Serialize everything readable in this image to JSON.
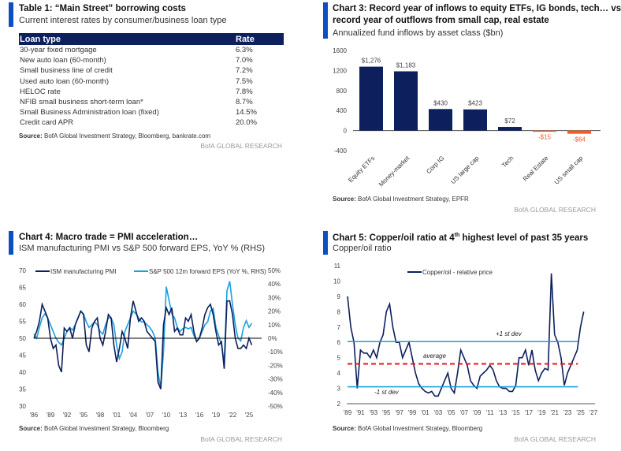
{
  "table1": {
    "title": "Table 1: “Main Street” borrowing costs",
    "subtitle": "Current interest rates by consumer/business loan type",
    "headers": [
      "Loan type",
      "Rate"
    ],
    "rows": [
      [
        "30-year fixed mortgage",
        "6.3%"
      ],
      [
        "New auto loan (60-month)",
        "7.0%"
      ],
      [
        "Small business line of credit",
        "7.2%"
      ],
      [
        "Used auto loan (60-month)",
        "7.5%"
      ],
      [
        "HELOC rate",
        "7.8%"
      ],
      [
        "NFIB small business short-term loan*",
        "8.7%"
      ],
      [
        "Small Business Administration loan (fixed)",
        "14.5%"
      ],
      [
        "Credit card APR",
        "20.0%"
      ]
    ],
    "source_label": "Source:",
    "source": " BofA Global Investment Strategy, Bloomberg, bankrate.com",
    "brand": "BofA GLOBAL RESEARCH"
  },
  "chart_data": [
    {
      "type": "bar",
      "title": "Chart 3: Record year of inflows to equity ETFs, IG bonds, tech… vs record year of outflows from small cap, real estate",
      "title_line1": "Chart 3: Record year of inflows to equity ETFs, IG bonds, tech… vs",
      "title_line2": "record year of outflows from small cap, real estate",
      "subtitle": "Annualized fund inflows by asset class ($bn)",
      "categories": [
        "Equity ETFs",
        "Money-market",
        "Corp IG",
        "US large cap",
        "Tech",
        "Real Estate",
        "US small cap"
      ],
      "values": [
        1276,
        1183,
        430,
        423,
        72,
        -15,
        -64
      ],
      "data_labels": [
        "$1,276",
        "$1,183",
        "$430",
        "$423",
        "$72",
        "-$15",
        "-$64"
      ],
      "ylim": [
        -400,
        1600
      ],
      "yticks": [
        "1600",
        "1200",
        "800",
        "400",
        "0",
        "-400"
      ],
      "colors": {
        "positive": "#0d1f5c",
        "negative": "#f25a2a",
        "neg_label": "#f25a2a"
      },
      "source_label": "Source:",
      "source": " BofA Global Investment Strategy, EPFR",
      "brand": "BofA GLOBAL RESEARCH"
    },
    {
      "type": "line",
      "title": "Chart 4: Macro trade = PMI acceleration…",
      "subtitle": "ISM manufacturing PMI vs S&P 500 forward EPS, YoY % (RHS)",
      "xticks": [
        "'86",
        "'89",
        "'92",
        "'95",
        "'98",
        "'01",
        "'04",
        "'07",
        "'10",
        "'13",
        "'16",
        "'19",
        "'22",
        "'25"
      ],
      "xlim": [
        1986,
        2026.3
      ],
      "ylim_left": [
        30,
        70
      ],
      "yticks_left": [
        "70",
        "65",
        "60",
        "55",
        "50",
        "45",
        "40",
        "35",
        "30"
      ],
      "ylim_right": [
        -50,
        50
      ],
      "yticks_right": [
        "50%",
        "40%",
        "30%",
        "20%",
        "10%",
        "0%",
        "-10%",
        "-20%",
        "-30%",
        "-40%",
        "-50%"
      ],
      "series": [
        {
          "name": "ISM manufacturing PMI",
          "axis": "left",
          "color": "#0d1f5c",
          "start": 1986,
          "step": 0.5,
          "values": [
            50,
            52,
            55,
            60,
            58,
            56,
            50,
            47,
            48,
            42,
            40,
            53,
            52,
            53,
            50,
            54,
            56,
            58,
            57,
            48,
            46,
            53,
            55,
            56,
            50,
            48,
            52,
            57,
            56,
            48,
            43,
            47,
            52,
            50,
            47,
            56,
            61,
            58,
            55,
            56,
            55,
            52,
            51,
            50,
            49,
            37,
            35,
            54,
            59,
            57,
            59,
            52,
            53,
            51,
            51,
            56,
            55,
            57,
            52,
            49,
            50,
            53,
            57,
            59,
            60,
            57,
            52,
            48,
            49,
            41,
            61,
            61,
            57,
            50,
            47,
            47,
            48,
            47,
            50,
            48
          ]
        },
        {
          "name": "S&P 500 12m forward EPS (YoY %, RHS)",
          "axis": "right",
          "color": "#1aa0e0",
          "start": 1986,
          "step": 0.5,
          "values": [
            3,
            0,
            8,
            15,
            18,
            15,
            10,
            5,
            0,
            -3,
            -5,
            0,
            5,
            8,
            6,
            10,
            15,
            20,
            18,
            12,
            8,
            10,
            12,
            10,
            5,
            3,
            10,
            15,
            15,
            10,
            -5,
            -15,
            -10,
            5,
            10,
            15,
            20,
            18,
            15,
            12,
            12,
            10,
            8,
            5,
            0,
            -25,
            -37,
            -10,
            38,
            28,
            18,
            15,
            8,
            5,
            7,
            8,
            7,
            8,
            2,
            -2,
            0,
            5,
            10,
            12,
            20,
            22,
            8,
            2,
            -5,
            -18,
            35,
            42,
            25,
            10,
            0,
            -2,
            8,
            13,
            8,
            11
          ]
        }
      ],
      "zero_line": "0%",
      "source_label": "Source:",
      "source": " BofA Global Investment Strategy, Bloomberg",
      "brand": "BofA GLOBAL RESEARCH"
    },
    {
      "type": "line",
      "title": "Chart 5: Copper/oil ratio at 4",
      "title_sup": "th",
      "title_rest": " highest level of past 35 years",
      "subtitle": "Copper/oil ratio",
      "xticks": [
        "'89",
        "'91",
        "'93",
        "'95",
        "'97",
        "'99",
        "'01",
        "'03",
        "'05",
        "'07",
        "'09",
        "'11",
        "'13",
        "'15",
        "'17",
        "'19",
        "'21",
        "'23",
        "'25",
        "'27"
      ],
      "xlim": [
        1989,
        2027
      ],
      "ylim": [
        2,
        11
      ],
      "yticks": [
        "11",
        "10",
        "9",
        "8",
        "7",
        "6",
        "5",
        "4",
        "3",
        "2"
      ],
      "series": [
        {
          "name": "Copper/oil - relative price",
          "color": "#0d1f5c",
          "start": 1989,
          "step": 0.5,
          "values": [
            9,
            7,
            6,
            3,
            5.5,
            5.3,
            5.3,
            5,
            5.5,
            5,
            6,
            6.5,
            8,
            8.5,
            7,
            6,
            6,
            5,
            5.5,
            6,
            5,
            4,
            3.3,
            3,
            2.8,
            2.7,
            2.8,
            2.5,
            2.5,
            3,
            3.5,
            4,
            3,
            2.7,
            4,
            5.5,
            5,
            4.5,
            3.5,
            3.2,
            3,
            3.8,
            4,
            4.2,
            4.5,
            4.2,
            3.5,
            3.1,
            3,
            3,
            2.8,
            2.8,
            3.2,
            5,
            5,
            5.5,
            4.5,
            5.5,
            4.2,
            3.5,
            4,
            4.3,
            4.2,
            10.5,
            6.5,
            6,
            5,
            3.2,
            4,
            4.5,
            5,
            5.5,
            7,
            8
          ]
        }
      ],
      "reference_lines": [
        {
          "label": "+1 st dev",
          "value": 6.05,
          "color": "#1aa0e0"
        },
        {
          "label": "average",
          "value": 4.6,
          "color": "#e8141b"
        },
        {
          "label": "-1 st dev",
          "value": 3.1,
          "color": "#1aa0e0"
        }
      ],
      "source_label": "Source:",
      "source": " BofA Global Investment Strategy, Bloomberg",
      "brand": "BofA GLOBAL RESEARCH"
    }
  ]
}
